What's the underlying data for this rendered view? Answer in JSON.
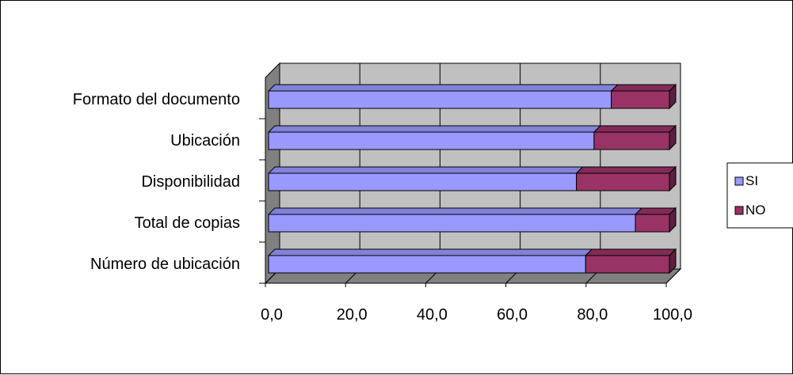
{
  "chart_data": {
    "type": "bar",
    "orientation": "horizontal",
    "stacked": true,
    "three_d": true,
    "categories": [
      "Número de ubicación",
      "Total de copias",
      "Disponibilidad",
      "Ubicación",
      "Formato del documento"
    ],
    "series": [
      {
        "name": "SI",
        "values": [
          79.1,
          91.5,
          76.8,
          81.2,
          85.5
        ],
        "color": "#9999ff"
      },
      {
        "name": "NO",
        "values": [
          20.9,
          8.5,
          23.2,
          18.8,
          14.5
        ],
        "color": "#993366"
      }
    ],
    "xlim": [
      0,
      100
    ],
    "xticks": [
      "0,0",
      "20,0",
      "40,0",
      "60,0",
      "80,0",
      "100,0"
    ],
    "grid": true,
    "legend": "right",
    "colors": {
      "wall": "#c0c0c0",
      "floor": "#808080",
      "grid": "#000000"
    }
  }
}
